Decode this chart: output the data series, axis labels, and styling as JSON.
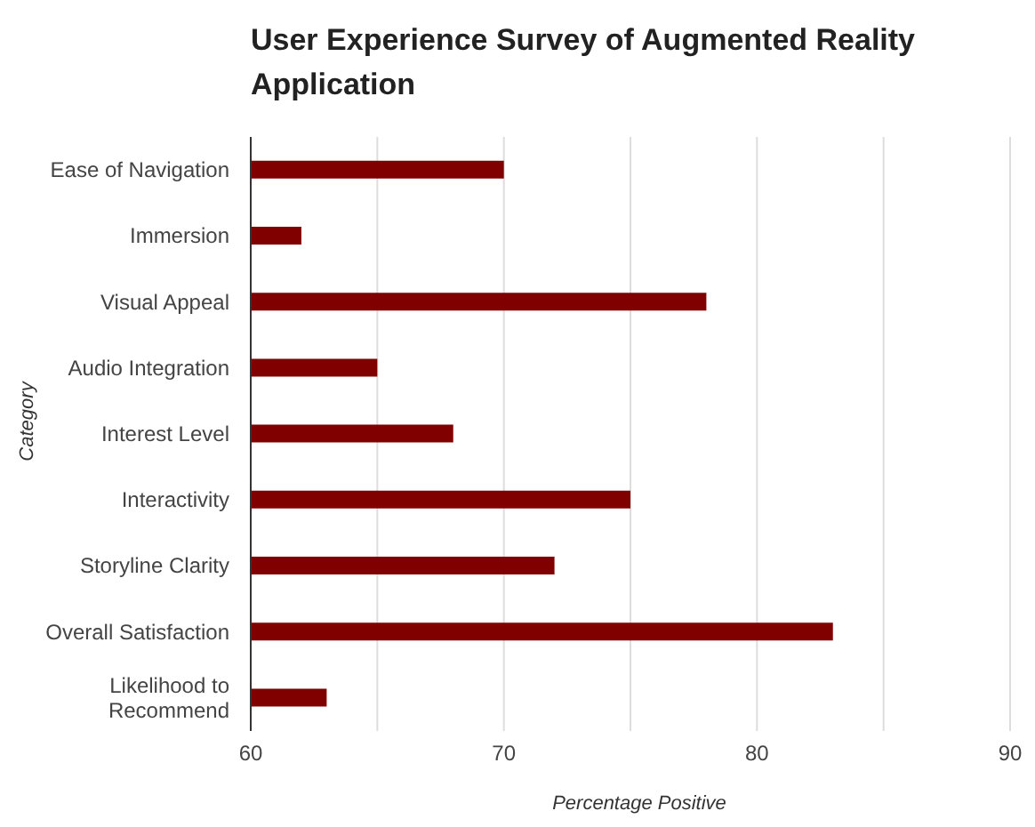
{
  "chart_data": {
    "type": "bar",
    "orientation": "horizontal",
    "title": "User Experience Survey of Augmented Reality Application",
    "xlabel": "Percentage Positive",
    "ylabel": "Category",
    "categories": [
      "Ease of Navigation",
      "Immersion",
      "Visual Appeal",
      "Audio Integration",
      "Interest Level",
      "Interactivity",
      "Storyline Clarity",
      "Overall Satisfaction",
      "Likelihood to Recommend"
    ],
    "values": [
      70,
      62,
      78,
      65,
      68,
      75,
      72,
      83,
      63
    ],
    "color": "#800000",
    "xlim": [
      60,
      90
    ],
    "xticks": [
      60,
      {
        "value": 65,
        "label": null
      },
      70,
      {
        "value": 75,
        "label": null
      },
      80,
      {
        "value": 85,
        "label": null
      },
      90
    ],
    "grid": "x",
    "legend": false
  }
}
